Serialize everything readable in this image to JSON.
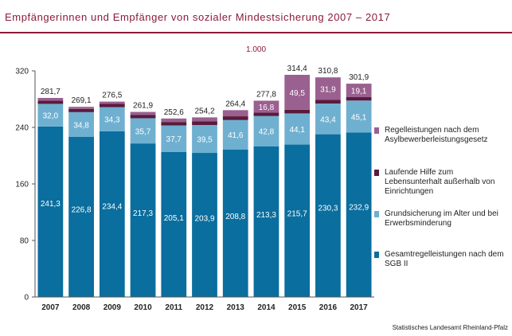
{
  "title": "Empfängerinnen und Empfänger von sozialer Mindestsicherung 2007 – 2017",
  "unit_label": "1.000",
  "source": "Statistisches Landesamt Rheinland-Pfalz",
  "colors": {
    "title": "#8b1a3a",
    "series": [
      "#0a6e9e",
      "#6fb0d0",
      "#5a1a3c",
      "#9a6090"
    ]
  },
  "chart_data": {
    "type": "bar",
    "stacked": true,
    "categories": [
      "2007",
      "2008",
      "2009",
      "2010",
      "2011",
      "2012",
      "2013",
      "2014",
      "2015",
      "2016",
      "2017"
    ],
    "series": [
      {
        "name": "Gesamtregelleistungen nach dem SGB II",
        "values": [
          241.3,
          226.8,
          234.4,
          217.3,
          205.1,
          203.9,
          208.8,
          213.3,
          215.7,
          230.3,
          232.9
        ],
        "labels": [
          "241,3",
          "226,8",
          "234,4",
          "217,3",
          "205,1",
          "203,9",
          "208,8",
          "213,3",
          "215,7",
          "230,3",
          "232,9"
        ]
      },
      {
        "name": "Grundsicherung im Alter und bei Erwerbsminderung",
        "values": [
          32.0,
          34.8,
          34.3,
          35.7,
          37.7,
          39.5,
          41.6,
          42.8,
          44.1,
          43.4,
          45.1
        ],
        "labels": [
          "32,0",
          "34,8",
          "34,3",
          "35,7",
          "37,7",
          "39,5",
          "41,6",
          "42,8",
          "44,1",
          "43,4",
          "45,1"
        ]
      },
      {
        "name": "Laufende Hilfe zum Lebensunterhalt außerhalb von Einrichtungen",
        "values": [
          4.4,
          4.4,
          4.6,
          4.8,
          4.9,
          5.1,
          5.3,
          4.9,
          5.1,
          5.2,
          4.8
        ],
        "labels": [
          "",
          "",
          "",
          "",
          "",
          "",
          "",
          "",
          "",
          "",
          ""
        ]
      },
      {
        "name": "Regelleistungen nach dem Asylbewerberleistungsgesetz",
        "values": [
          4.0,
          3.1,
          3.2,
          4.1,
          4.9,
          5.7,
          8.7,
          16.8,
          49.5,
          31.9,
          19.1
        ],
        "labels": [
          "",
          "",
          "",
          "",
          "",
          "",
          "",
          "16,8",
          "49,5",
          "31,9",
          "19,1"
        ]
      }
    ],
    "totals": [
      "281,7",
      "269,1",
      "276,5",
      "261,9",
      "252,6",
      "254,2",
      "264,4",
      "277,8",
      "314,4",
      "310,8",
      "301,9"
    ],
    "yticks": [
      "0",
      "80",
      "160",
      "240",
      "320"
    ],
    "ylim": [
      0,
      320
    ],
    "legend_order": [
      3,
      2,
      1,
      0
    ],
    "legend_position": "right",
    "grid": false
  }
}
